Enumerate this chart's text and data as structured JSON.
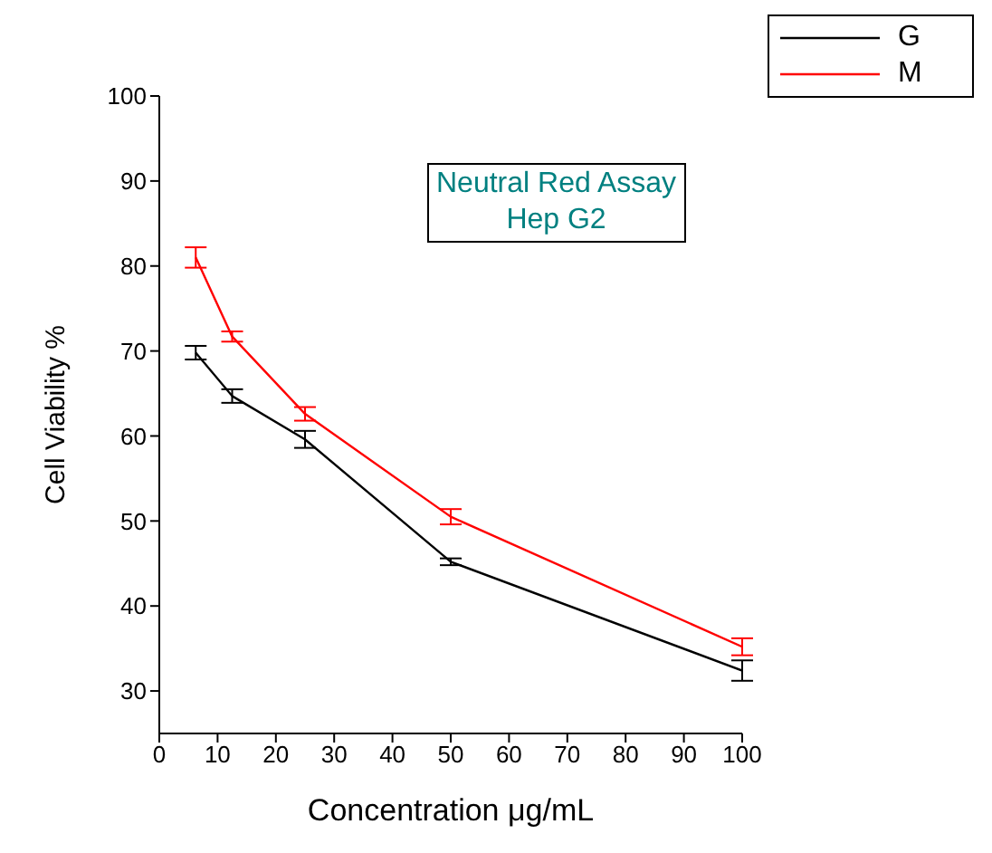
{
  "chart_data": {
    "type": "line",
    "xlabel": "Concentration μg/mL",
    "ylabel": "Cell Viability %",
    "annotations": [
      "Neutral Red Assay",
      "Hep G2"
    ],
    "x": [
      6.25,
      12.5,
      25,
      50,
      100
    ],
    "series": [
      {
        "name": "G",
        "color": "#000000",
        "values": [
          69.8,
          64.7,
          59.6,
          45.2,
          32.4
        ],
        "errors": [
          0.8,
          0.8,
          1,
          0.4,
          1.2
        ]
      },
      {
        "name": "M",
        "color": "#ff0000",
        "values": [
          81,
          71.7,
          62.6,
          50.5,
          35.2
        ],
        "errors": [
          1.2,
          0.6,
          0.8,
          0.9,
          1
        ]
      }
    ],
    "xlim": [
      0,
      100
    ],
    "xticks": [
      0,
      10,
      20,
      30,
      40,
      50,
      60,
      70,
      80,
      90,
      100
    ],
    "ylim": [
      25,
      100
    ],
    "yticks": [
      30,
      40,
      50,
      60,
      70,
      80,
      90,
      100
    ],
    "legend": "top right",
    "marker": "none",
    "line_style": "solid",
    "grid": false
  }
}
